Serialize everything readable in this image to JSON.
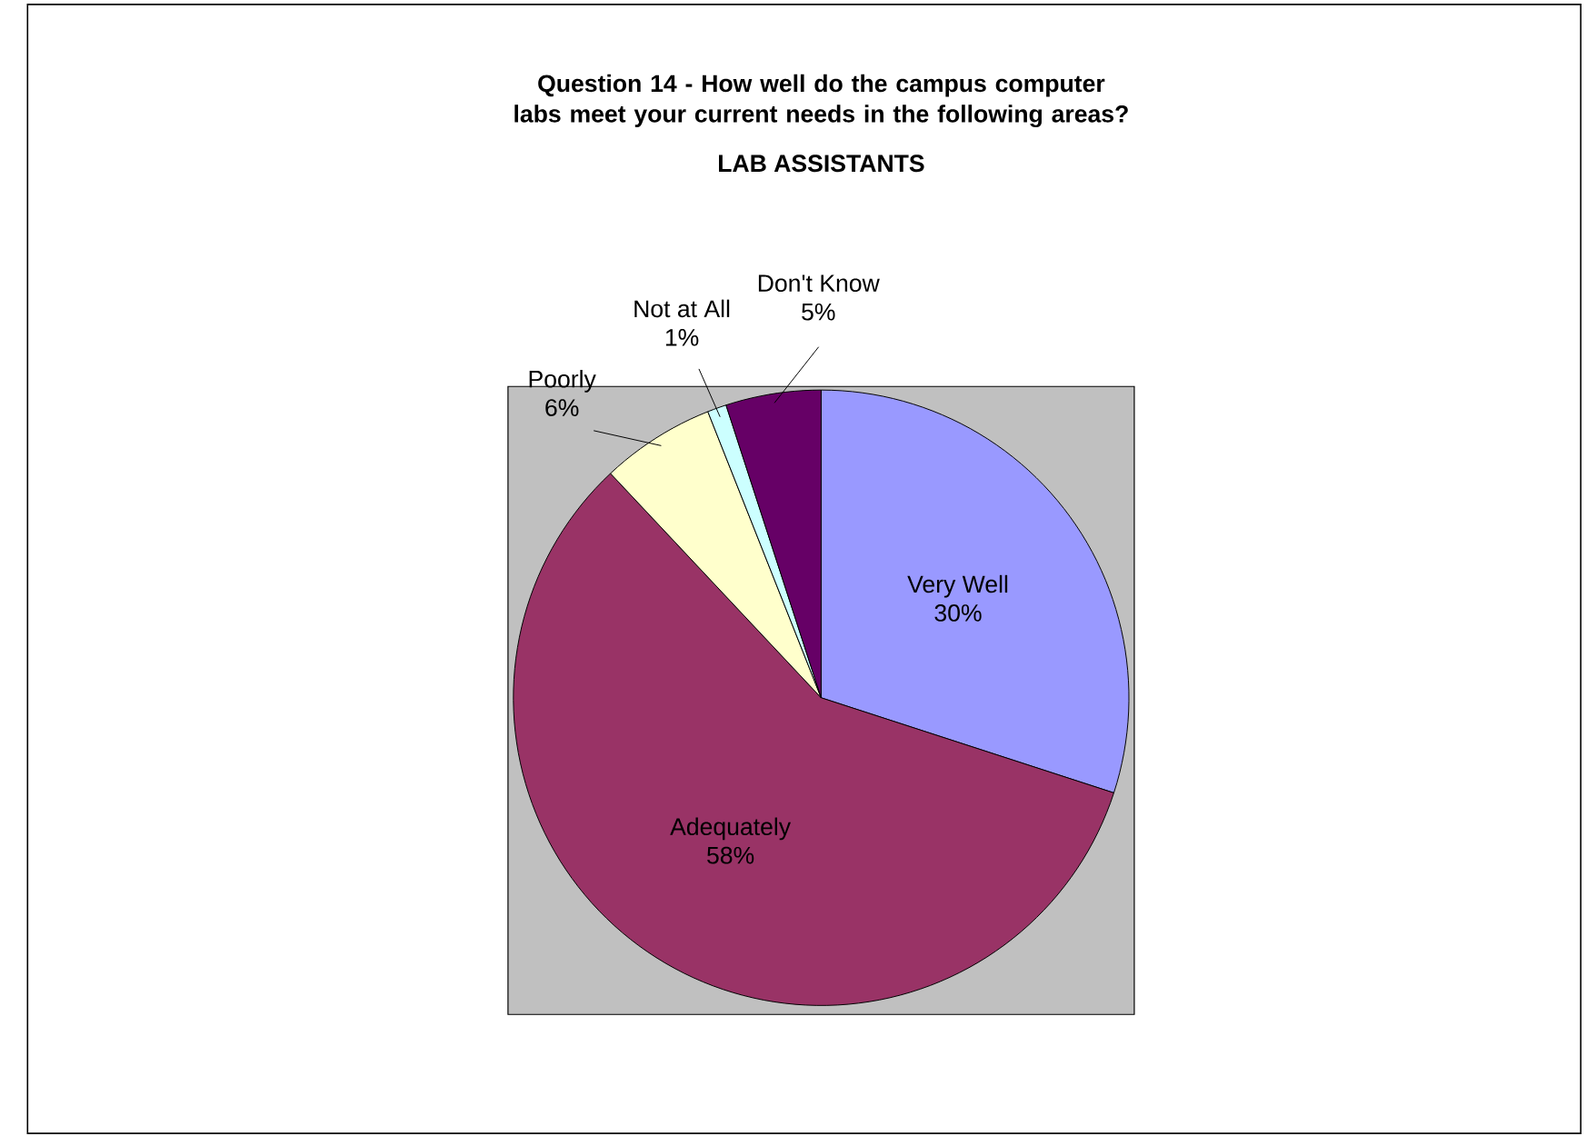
{
  "chart_data": {
    "type": "pie",
    "title": "Question 14 - How well do the campus computer labs meet your current needs in the following areas?",
    "subtitle": "LAB ASSISTANTS",
    "categories": [
      "Very Well",
      "Adequately",
      "Poorly",
      "Not at All",
      "Don't Know"
    ],
    "values": [
      30,
      58,
      6,
      1,
      5
    ],
    "colors": [
      "#9999ff",
      "#993366",
      "#ffffcc",
      "#ccffff",
      "#660066"
    ],
    "value_labels": [
      "30%",
      "58%",
      "6%",
      "1%",
      "5%"
    ]
  }
}
